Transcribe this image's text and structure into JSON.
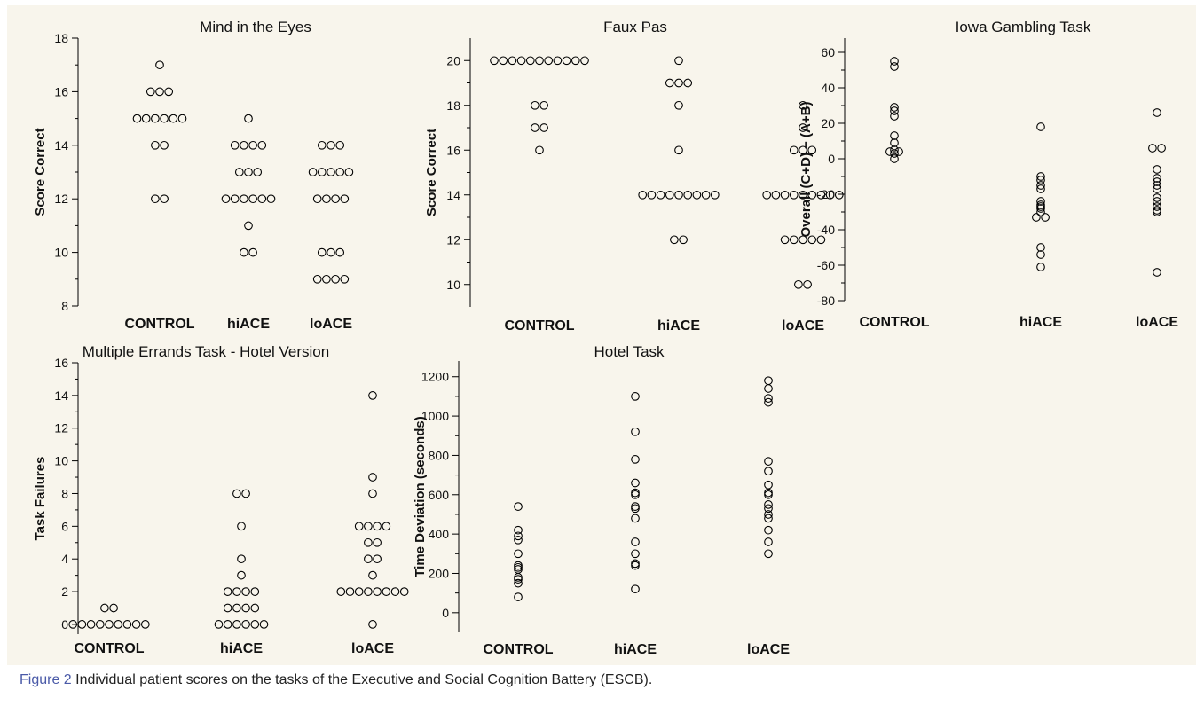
{
  "caption": {
    "label": "Figure 2",
    "text": " Individual patient scores on the tasks of the Executive and Social Cognition Battery (ESCB)."
  },
  "colors": {
    "panel_background": "#f8f5ec",
    "marker_stroke": "#000000",
    "caption_label": "#4a5aa8"
  },
  "chart_data": [
    {
      "type": "scatter",
      "title": "Mind in the Eyes",
      "ylabel": "Score Correct",
      "categories": [
        "CONTROL",
        "hiACE",
        "loACE"
      ],
      "ylim": [
        8,
        18
      ],
      "yticks": [
        8,
        10,
        12,
        14,
        16,
        18
      ],
      "groups": [
        [
          17,
          16,
          16,
          16,
          15,
          15,
          15,
          15,
          15,
          15,
          14,
          14,
          12,
          12
        ],
        [
          15,
          14,
          14,
          14,
          14,
          13,
          13,
          13,
          12,
          12,
          12,
          12,
          12,
          12,
          11,
          10,
          10
        ],
        [
          14,
          14,
          14,
          13,
          13,
          13,
          13,
          13,
          12,
          12,
          12,
          12,
          10,
          10,
          10,
          9,
          9,
          9,
          9
        ]
      ]
    },
    {
      "type": "scatter",
      "title": "Faux Pas",
      "ylabel": "Score Correct",
      "categories": [
        "CONTROL",
        "hiACE",
        "loACE"
      ],
      "ylim": [
        9,
        21
      ],
      "yticks": [
        10,
        12,
        14,
        16,
        18,
        20
      ],
      "groups": [
        [
          20,
          20,
          20,
          20,
          20,
          20,
          20,
          20,
          20,
          20,
          20,
          18,
          18,
          17,
          17,
          16
        ],
        [
          20,
          19,
          19,
          19,
          18,
          16,
          14,
          14,
          14,
          14,
          14,
          14,
          14,
          14,
          14,
          12,
          12
        ],
        [
          18,
          17,
          16,
          16,
          16,
          14,
          14,
          14,
          14,
          14,
          14,
          14,
          14,
          14,
          12,
          12,
          12,
          12,
          12,
          10,
          10
        ]
      ]
    },
    {
      "type": "scatter",
      "title": "Iowa Gambling Task",
      "ylabel": "Overall (C+D) − (A+B)",
      "categories": [
        "CONTROL",
        "hiACE",
        "loACE"
      ],
      "ylim": [
        -80,
        68
      ],
      "yticks": [
        -80,
        -60,
        -40,
        -20,
        0,
        20,
        40,
        60
      ],
      "groups": [
        [
          55,
          52,
          29,
          27,
          24,
          13,
          9,
          5,
          4,
          4,
          3,
          0
        ],
        [
          18,
          -10,
          -12,
          -15,
          -17,
          -24,
          -26,
          -27,
          -28,
          -30,
          -33,
          -33,
          -50,
          -54,
          -61
        ],
        [
          26,
          6,
          6,
          -6,
          -11,
          -13,
          -15,
          -17,
          -22,
          -24,
          -27,
          -29,
          -30,
          -64
        ]
      ]
    },
    {
      "type": "scatter",
      "title": "Multiple Errands Task - Hotel Version",
      "ylabel": "Task Failures",
      "categories": [
        "CONTROL",
        "hiACE",
        "loACE"
      ],
      "ylim": [
        -0.6,
        16
      ],
      "yticks": [
        0,
        2,
        4,
        6,
        8,
        10,
        12,
        14,
        16
      ],
      "groups": [
        [
          1,
          1,
          0,
          0,
          0,
          0,
          0,
          0,
          0,
          0,
          0
        ],
        [
          8,
          8,
          6,
          4,
          3,
          2,
          2,
          2,
          2,
          1,
          1,
          1,
          1,
          0,
          0,
          0,
          0,
          0,
          0
        ],
        [
          14,
          9,
          8,
          6,
          6,
          6,
          6,
          5,
          5,
          4,
          4,
          3,
          2,
          2,
          2,
          2,
          2,
          2,
          2,
          2,
          0
        ]
      ]
    },
    {
      "type": "scatter",
      "title": "Hotel Task",
      "ylabel": "Time Deviation (seconds)",
      "categories": [
        "CONTROL",
        "hiACE",
        "loACE"
      ],
      "ylim": [
        -100,
        1280
      ],
      "yticks": [
        0,
        200,
        400,
        600,
        800,
        1000,
        1200
      ],
      "groups": [
        [
          540,
          420,
          390,
          370,
          300,
          240,
          230,
          220,
          180,
          170,
          150,
          80
        ],
        [
          1100,
          920,
          780,
          660,
          610,
          600,
          540,
          530,
          480,
          360,
          300,
          250,
          240,
          120
        ],
        [
          1180,
          1140,
          1090,
          1070,
          770,
          720,
          650,
          610,
          600,
          550,
          530,
          500,
          480,
          420,
          360,
          300
        ]
      ]
    }
  ]
}
